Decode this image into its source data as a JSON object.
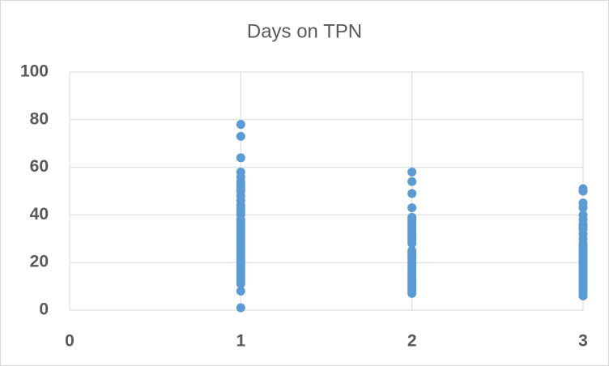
{
  "chart_data": {
    "type": "scatter",
    "title": "Days on TPN",
    "color": "#5b9bd5",
    "x": [
      1,
      1,
      1,
      1,
      1,
      1,
      1,
      1,
      1,
      1,
      1,
      1,
      1,
      1,
      1,
      1,
      1,
      1,
      1,
      1,
      1,
      1,
      1,
      1,
      1,
      1,
      1,
      1,
      1,
      1,
      1,
      1,
      1,
      1,
      1,
      1,
      1,
      1,
      1,
      1,
      1,
      1,
      1,
      1,
      1,
      1,
      1,
      2,
      2,
      2,
      2,
      2,
      2,
      2,
      2,
      2,
      2,
      2,
      2,
      2,
      2,
      2,
      2,
      2,
      2,
      2,
      2,
      2,
      2,
      2,
      2,
      2,
      2,
      2,
      2,
      2,
      2,
      2,
      2,
      2,
      2,
      2,
      3,
      3,
      3,
      3,
      3,
      3,
      3,
      3,
      3,
      3,
      3,
      3,
      3,
      3,
      3,
      3,
      3,
      3,
      3,
      3,
      3,
      3,
      3,
      3,
      3,
      3,
      3,
      3,
      3,
      3,
      3,
      3,
      3,
      3
    ],
    "y": [
      78,
      73,
      64,
      58,
      56,
      54,
      53,
      52,
      51,
      50,
      48,
      46,
      44,
      43,
      42,
      41,
      40,
      38,
      37,
      36,
      35,
      34,
      33,
      32,
      31,
      30,
      29,
      28,
      27,
      26,
      25,
      24,
      23,
      22,
      21,
      20,
      19,
      18,
      17,
      16,
      15,
      14,
      13,
      12,
      11,
      8,
      1,
      58,
      54,
      49,
      43,
      39,
      38,
      37,
      36,
      35,
      34,
      33,
      32,
      31,
      30,
      29,
      28,
      25,
      24,
      23,
      22,
      21,
      20,
      19,
      18,
      17,
      16,
      15,
      14,
      13,
      12,
      11,
      10,
      9,
      8,
      7,
      51,
      50,
      45,
      43,
      40,
      38,
      36,
      35,
      34,
      32,
      30,
      28,
      27,
      26,
      25,
      24,
      23,
      22,
      21,
      20,
      19,
      18,
      17,
      16,
      15,
      14,
      13,
      12,
      11,
      10,
      9,
      8,
      7,
      6
    ],
    "xlim": [
      0,
      3
    ],
    "xticks": [
      0,
      1,
      2,
      3
    ],
    "ylim": [
      0,
      100
    ],
    "yticks": [
      0,
      20,
      40,
      60,
      80,
      100
    ],
    "grid": true
  }
}
